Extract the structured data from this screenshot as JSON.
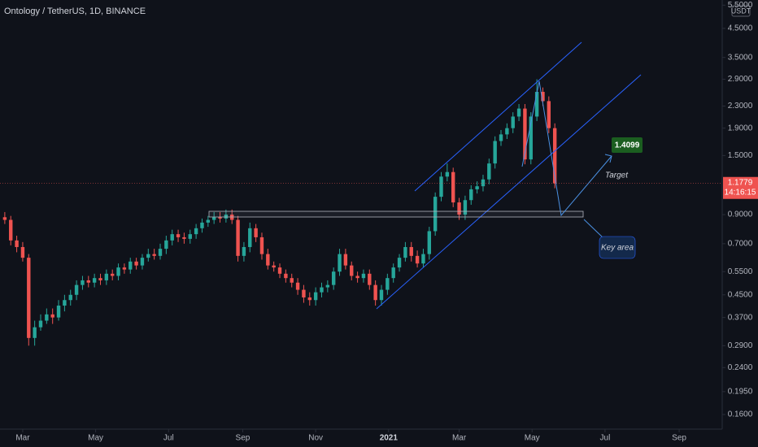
{
  "chart_data": {
    "type": "candlestick",
    "title": "Ontology / TetherUS, 1D, BINANCE",
    "currency": "USDT",
    "log_scale": true,
    "up_color": "#26a69a",
    "down_color": "#ef5350",
    "x": [
      -15,
      -10,
      -5,
      0,
      5,
      10,
      15,
      20,
      25,
      30,
      35,
      40,
      45,
      50,
      55,
      60,
      65,
      70,
      75,
      80,
      85,
      90,
      95,
      100,
      105,
      110,
      115,
      120,
      125,
      130,
      135,
      140,
      145,
      150,
      155,
      160,
      165,
      170,
      175,
      180,
      185,
      190,
      195,
      200,
      205,
      210,
      215,
      220,
      225,
      230,
      235,
      240,
      245,
      250,
      255,
      260,
      265,
      270,
      275,
      280,
      285,
      290,
      295,
      300,
      305,
      310,
      315,
      320,
      325,
      330,
      335,
      340,
      345,
      350,
      355,
      360,
      365,
      370,
      375,
      380,
      385,
      390,
      395,
      400,
      405,
      410,
      415,
      420,
      425,
      430,
      435,
      440,
      445
    ],
    "open": [
      0.88,
      0.86,
      0.72,
      0.68,
      0.62,
      0.31,
      0.34,
      0.36,
      0.38,
      0.37,
      0.41,
      0.43,
      0.45,
      0.49,
      0.51,
      0.5,
      0.52,
      0.51,
      0.54,
      0.53,
      0.57,
      0.56,
      0.6,
      0.58,
      0.62,
      0.64,
      0.63,
      0.67,
      0.72,
      0.76,
      0.74,
      0.73,
      0.76,
      0.8,
      0.84,
      0.86,
      0.88,
      0.87,
      0.9,
      0.86,
      0.63,
      0.68,
      0.8,
      0.74,
      0.64,
      0.58,
      0.57,
      0.54,
      0.52,
      0.5,
      0.47,
      0.44,
      0.43,
      0.46,
      0.48,
      0.49,
      0.55,
      0.64,
      0.58,
      0.53,
      0.52,
      0.54,
      0.49,
      0.43,
      0.47,
      0.52,
      0.57,
      0.62,
      0.68,
      0.63,
      0.59,
      0.64,
      0.78,
      1.05,
      1.25,
      1.3,
      1.0,
      0.9,
      1.02,
      1.12,
      1.15,
      1.22,
      1.4,
      1.7,
      1.8,
      1.9,
      2.1,
      2.25,
      1.45,
      2.1,
      2.6,
      2.4,
      1.9
    ],
    "high": [
      0.92,
      0.89,
      0.75,
      0.71,
      0.64,
      0.36,
      0.38,
      0.4,
      0.4,
      0.43,
      0.45,
      0.47,
      0.51,
      0.53,
      0.53,
      0.54,
      0.54,
      0.56,
      0.56,
      0.59,
      0.59,
      0.62,
      0.62,
      0.64,
      0.67,
      0.67,
      0.7,
      0.75,
      0.79,
      0.79,
      0.77,
      0.79,
      0.83,
      0.87,
      0.89,
      0.92,
      0.92,
      0.94,
      0.94,
      0.89,
      0.71,
      0.84,
      0.83,
      0.77,
      0.67,
      0.6,
      0.59,
      0.56,
      0.54,
      0.52,
      0.49,
      0.46,
      0.48,
      0.5,
      0.51,
      0.57,
      0.67,
      0.67,
      0.6,
      0.55,
      0.56,
      0.56,
      0.51,
      0.49,
      0.54,
      0.59,
      0.64,
      0.71,
      0.71,
      0.66,
      0.67,
      0.81,
      1.09,
      1.3,
      1.4,
      1.35,
      1.04,
      1.06,
      1.16,
      1.2,
      1.27,
      1.46,
      1.77,
      1.87,
      1.98,
      2.18,
      2.34,
      2.34,
      2.18,
      2.9,
      2.7,
      2.5,
      1.98
    ],
    "low": [
      0.83,
      0.69,
      0.65,
      0.6,
      0.29,
      0.29,
      0.33,
      0.35,
      0.35,
      0.36,
      0.39,
      0.41,
      0.43,
      0.47,
      0.48,
      0.48,
      0.49,
      0.49,
      0.51,
      0.51,
      0.54,
      0.54,
      0.56,
      0.56,
      0.6,
      0.61,
      0.61,
      0.64,
      0.69,
      0.71,
      0.7,
      0.7,
      0.73,
      0.77,
      0.81,
      0.83,
      0.84,
      0.84,
      0.83,
      0.6,
      0.6,
      0.65,
      0.71,
      0.61,
      0.56,
      0.55,
      0.52,
      0.5,
      0.48,
      0.45,
      0.42,
      0.41,
      0.41,
      0.44,
      0.46,
      0.47,
      0.53,
      0.56,
      0.51,
      0.5,
      0.5,
      0.47,
      0.41,
      0.41,
      0.45,
      0.5,
      0.55,
      0.6,
      0.6,
      0.57,
      0.57,
      0.61,
      0.75,
      1.01,
      1.2,
      0.96,
      0.86,
      0.86,
      0.98,
      1.08,
      1.1,
      1.17,
      1.34,
      1.63,
      1.73,
      1.82,
      2.02,
      1.39,
      1.39,
      2.02,
      2.3,
      1.82,
      1.13
    ],
    "close": [
      0.86,
      0.72,
      0.68,
      0.62,
      0.31,
      0.34,
      0.36,
      0.38,
      0.37,
      0.41,
      0.43,
      0.45,
      0.49,
      0.51,
      0.5,
      0.52,
      0.51,
      0.54,
      0.53,
      0.57,
      0.56,
      0.6,
      0.58,
      0.62,
      0.64,
      0.63,
      0.67,
      0.72,
      0.76,
      0.74,
      0.73,
      0.76,
      0.8,
      0.84,
      0.86,
      0.88,
      0.87,
      0.9,
      0.86,
      0.63,
      0.68,
      0.8,
      0.74,
      0.64,
      0.58,
      0.57,
      0.54,
      0.52,
      0.5,
      0.47,
      0.44,
      0.43,
      0.46,
      0.48,
      0.49,
      0.55,
      0.64,
      0.58,
      0.53,
      0.52,
      0.54,
      0.49,
      0.43,
      0.47,
      0.52,
      0.57,
      0.62,
      0.68,
      0.63,
      0.59,
      0.64,
      0.78,
      1.05,
      1.25,
      1.3,
      1.0,
      0.9,
      1.02,
      1.12,
      1.15,
      1.22,
      1.4,
      1.7,
      1.8,
      1.9,
      2.1,
      2.25,
      1.45,
      2.1,
      2.6,
      2.4,
      1.9,
      1.18
    ],
    "xlim": [
      -19,
      585
    ],
    "xticks": [
      {
        "value": 0,
        "label": "Mar"
      },
      {
        "value": 61,
        "label": "May"
      },
      {
        "value": 122,
        "label": "Jul"
      },
      {
        "value": 184,
        "label": "Sep"
      },
      {
        "value": 245,
        "label": "Nov"
      },
      {
        "value": 306,
        "label": "2021"
      },
      {
        "value": 365,
        "label": "Mar"
      },
      {
        "value": 426,
        "label": "May"
      },
      {
        "value": 487,
        "label": "Jul"
      },
      {
        "value": 549,
        "label": "Sep"
      }
    ],
    "ylim": [
      0.141,
      5.75
    ],
    "yticks": [
      {
        "value": 0.16,
        "label": "0.1600"
      },
      {
        "value": 0.195,
        "label": "0.1950"
      },
      {
        "value": 0.24,
        "label": "0.2400"
      },
      {
        "value": 0.29,
        "label": "0.2900"
      },
      {
        "value": 0.37,
        "label": "0.3700"
      },
      {
        "value": 0.45,
        "label": "0.4500"
      },
      {
        "value": 0.55,
        "label": "0.5500"
      },
      {
        "value": 0.7,
        "label": "0.7000"
      },
      {
        "value": 0.9,
        "label": "0.9000"
      },
      {
        "value": 1.5,
        "label": "1.5000"
      },
      {
        "value": 1.9,
        "label": "1.9000"
      },
      {
        "value": 2.3,
        "label": "2.3000"
      },
      {
        "value": 2.9,
        "label": "2.9000"
      },
      {
        "value": 3.5,
        "label": "3.5000"
      },
      {
        "value": 4.5,
        "label": "4.5000"
      },
      {
        "value": 5.5,
        "label": "5.5000"
      }
    ],
    "last_price": 1.1779,
    "countdown": "14:16:15",
    "annotations": {
      "target_price": "1.4099",
      "target": "Target",
      "key_area": "Key area"
    }
  }
}
